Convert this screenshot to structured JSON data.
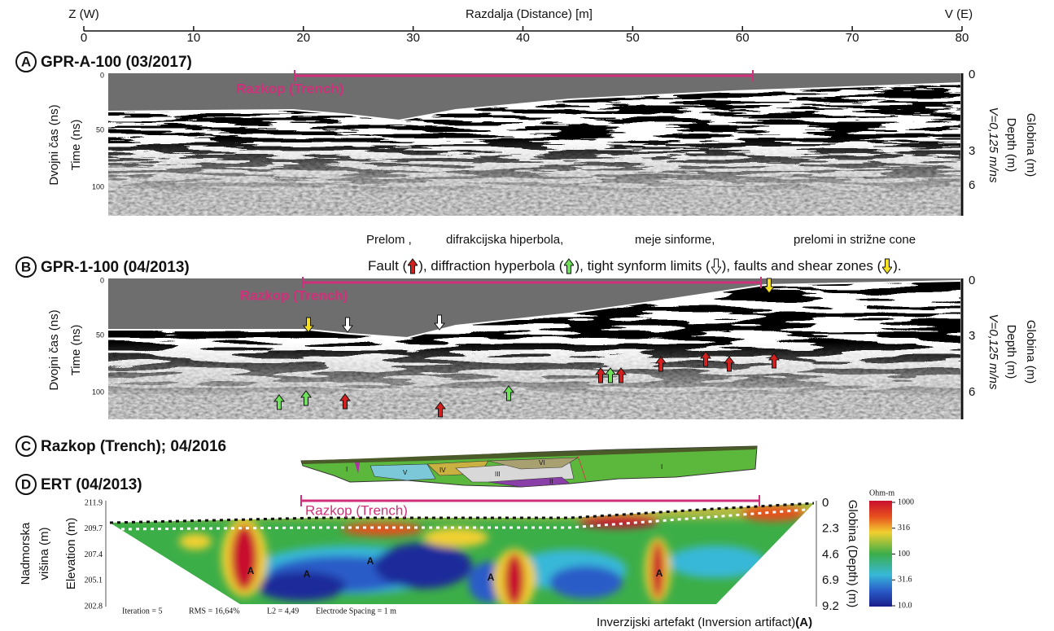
{
  "distance_axis": {
    "west": "Z (W)",
    "title": "Razdalja (Distance) [m]",
    "east": "V (E)",
    "ticks": [
      "0",
      "10",
      "20",
      "30",
      "40",
      "50",
      "60",
      "70",
      "80"
    ]
  },
  "panel_a": {
    "letter": "A",
    "title": "GPR-A-100 (03/2017)",
    "trench": "Razkop (Trench)",
    "time_label_sl": "Dvojni čas (ns)",
    "time_label_en": "Time (ns)",
    "time_ticks": [
      "0",
      "50",
      "100"
    ],
    "depth_label_sl": "Globina (m)",
    "depth_label_en": "Depth (m)",
    "velocity": "V=0,125 m/ns",
    "depth_ticks": [
      "0",
      "3",
      "6"
    ]
  },
  "legend": {
    "sl": [
      "Prelom ,",
      "difrakcijska hiperbola,",
      "meje sinforme,",
      "prelomi in strižne cone"
    ],
    "en": [
      "Fault (",
      "), diffraction hyperbola (",
      "), tight synform limits (",
      "), faults and shear zones (",
      ")."
    ]
  },
  "panel_b": {
    "letter": "B",
    "title": "GPR-1-100 (04/2013)",
    "trench": "Razkop (Trench)",
    "time_label_sl": "Dvojni čas (ns)",
    "time_label_en": "Time (ns)",
    "time_ticks": [
      "0",
      "50",
      "100"
    ],
    "depth_label_sl": "Globina (m)",
    "depth_label_en": "Depth (m)",
    "velocity": "V=0,125 m/ns",
    "depth_ticks": [
      "0",
      "3",
      "6"
    ]
  },
  "panel_c": {
    "letter": "C",
    "title": "Razkop (Trench); 04/2016",
    "units": [
      "I",
      "V",
      "IV",
      "III",
      "VI",
      "II",
      "I"
    ]
  },
  "panel_d": {
    "letter": "D",
    "title": "ERT (04/2013)",
    "trench": "Razkop (Trench)",
    "elevation_label_sl": [
      "Nadmorska",
      "višina (m)"
    ],
    "elevation_label_en": "Elevation (m)",
    "elevation_ticks": [
      "211.9",
      "209.7",
      "207.4",
      "205.1",
      "202.8"
    ],
    "depth_label": "Globina (Depth) (m)",
    "depth_ticks": [
      "0",
      "2.3",
      "4.6",
      "6.9",
      "9.2"
    ],
    "scale_unit": "Ohm-m",
    "scale_ticks": [
      "1000",
      "316",
      "100",
      "31.6",
      "10.0"
    ],
    "artifact_marks": [
      "A",
      "A",
      "A",
      "A",
      "A"
    ],
    "stats": [
      "Iteration = 5",
      "RMS = 16,64%",
      "L2 = 4,49",
      "Electrode Spacing = 1 m"
    ],
    "artifact_note": "Inverzijski artefakt (Inversion artifact)",
    "artifact_key": "(A)"
  }
}
